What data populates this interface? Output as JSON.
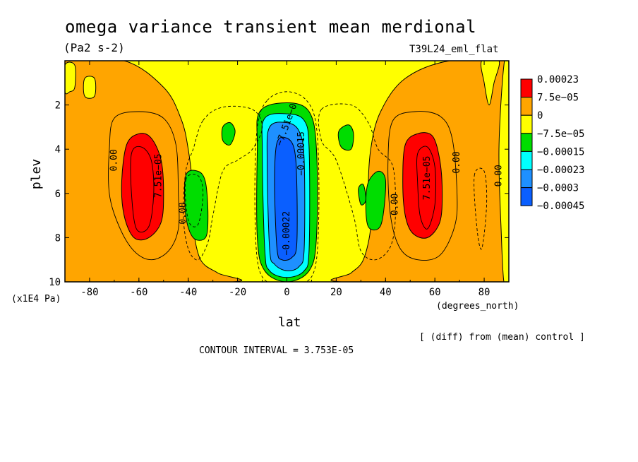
{
  "chart_data": {
    "type": "contour",
    "title": "omega variance transient mean merdional",
    "units": "(Pa2 s-2)",
    "run_label": "T39L24_eml_flat",
    "xlabel": "lat",
    "x_units": "(degrees_north)",
    "ylabel": "plev",
    "y_units": "(x1E4 Pa)",
    "xlim": [
      -90,
      90
    ],
    "ylim": [
      10,
      0
    ],
    "x_ticks": [
      {
        "v": -80,
        "label": "-80"
      },
      {
        "v": -60,
        "label": "-60"
      },
      {
        "v": -40,
        "label": "-40"
      },
      {
        "v": -20,
        "label": "-20"
      },
      {
        "v": 0,
        "label": "0"
      },
      {
        "v": 20,
        "label": "20"
      },
      {
        "v": 40,
        "label": "40"
      },
      {
        "v": 60,
        "label": "60"
      },
      {
        "v": 80,
        "label": "80"
      }
    ],
    "y_ticks": [
      {
        "v": 2,
        "label": "2"
      },
      {
        "v": 4,
        "label": "4"
      },
      {
        "v": 6,
        "label": "6"
      },
      {
        "v": 8,
        "label": "8"
      },
      {
        "v": 10,
        "label": "10"
      }
    ],
    "legend": {
      "placement": "right",
      "levels": [
        "0.00023",
        "7.5e−05",
        "0",
        "−7.5e−05",
        "−0.00015",
        "−0.00023",
        "−0.0003",
        "−0.00045"
      ],
      "colors": [
        "#ff0000",
        "#ffa500",
        "#ffff00",
        "#00dd00",
        "#00ffff",
        "#1e90ff",
        "#0a5fff"
      ]
    },
    "contour_labels": [
      {
        "text": "7.51e−05",
        "lat": -52,
        "plev": 5.2,
        "rot": -90
      },
      {
        "text": "0.00",
        "lat": -70,
        "plev": 4.5,
        "rot": -90
      },
      {
        "text": "0.00",
        "lat": -42,
        "plev": 6.9,
        "rot": -90
      },
      {
        "text": "7.51e−05",
        "lat": 57,
        "plev": 5.3,
        "rot": -90
      },
      {
        "text": "0.00",
        "lat": 69,
        "plev": 4.6,
        "rot": -90
      },
      {
        "text": "0.00",
        "lat": 44,
        "plev": 6.5,
        "rot": -90
      },
      {
        "text": "0.00",
        "lat": 86,
        "plev": 5.2,
        "rot": -90
      },
      {
        "text": "−0.00015",
        "lat": 6,
        "plev": 4.2,
        "rot": -90
      },
      {
        "text": "−7.51e−0",
        "lat": 0,
        "plev": 2.9,
        "rot": -70
      },
      {
        "text": "−0.00022",
        "lat": 0,
        "plev": 7.8,
        "rot": -90
      }
    ],
    "regions": [
      {
        "name": "polar-band-south",
        "fill": "#ffa500",
        "pts": [
          [
            -90,
            0
          ],
          [
            -66,
            0
          ],
          [
            -50,
            1.2
          ],
          [
            -43,
            2.6
          ],
          [
            -40,
            4
          ],
          [
            -38,
            6
          ],
          [
            -38,
            7.5
          ],
          [
            -35,
            9
          ],
          [
            -28,
            9.6
          ],
          [
            -22,
            10
          ],
          [
            -90,
            10
          ]
        ]
      },
      {
        "name": "polar-band-north",
        "fill": "#ffa500",
        "pts": [
          [
            90,
            0
          ],
          [
            66,
            0
          ],
          [
            48,
            0.8
          ],
          [
            38,
            2.3
          ],
          [
            34,
            4
          ],
          [
            33,
            6
          ],
          [
            34,
            7.5
          ],
          [
            31,
            9
          ],
          [
            26,
            9.6
          ],
          [
            22,
            10
          ],
          [
            90,
            10
          ]
        ]
      },
      {
        "name": "yellow-island-s1",
        "fill": "#ffff00",
        "pts": [
          [
            -90,
            0.2
          ],
          [
            -86,
            0.2
          ],
          [
            -86,
            1.2
          ],
          [
            -88,
            1.4
          ],
          [
            -90,
            1.4
          ]
        ]
      },
      {
        "name": "yellow-island-s2",
        "fill": "#ffff00",
        "pts": [
          [
            -82,
            0.8
          ],
          [
            -78,
            0.8
          ],
          [
            -78,
            1.6
          ],
          [
            -82,
            1.6
          ]
        ]
      },
      {
        "name": "yellow-band-north",
        "fill": "#ffff00",
        "pts": [
          [
            88,
            0.2
          ],
          [
            90,
            0.2
          ],
          [
            90,
            10
          ],
          [
            88,
            10
          ],
          [
            87,
            8
          ],
          [
            86,
            4
          ]
        ]
      },
      {
        "name": "yellow-island-n2",
        "fill": "#ffff00",
        "pts": [
          [
            79,
            0
          ],
          [
            86,
            0
          ],
          [
            84,
            1
          ],
          [
            82,
            2
          ],
          [
            80,
            1
          ]
        ]
      },
      {
        "name": "red-core-south",
        "fill": "#ff0000",
        "pts": [
          [
            -65,
            3.8
          ],
          [
            -60,
            3.3
          ],
          [
            -55,
            3.5
          ],
          [
            -51,
            4.5
          ],
          [
            -50,
            6
          ],
          [
            -51,
            7.3
          ],
          [
            -56,
            8
          ],
          [
            -62,
            8
          ],
          [
            -66,
            7
          ],
          [
            -67,
            5.5
          ]
        ]
      },
      {
        "name": "red-core-north",
        "fill": "#ff0000",
        "pts": [
          [
            48,
            3.8
          ],
          [
            53,
            3.3
          ],
          [
            59,
            3.4
          ],
          [
            62,
            4.5
          ],
          [
            63,
            6
          ],
          [
            62,
            7.3
          ],
          [
            57,
            8
          ],
          [
            51,
            7.8
          ],
          [
            48,
            7
          ],
          [
            47,
            5.5
          ]
        ]
      },
      {
        "name": "green-blob-s",
        "fill": "#00dd00",
        "pts": [
          [
            -41,
            5.2
          ],
          [
            -36,
            5
          ],
          [
            -33,
            5.5
          ],
          [
            -32,
            7
          ],
          [
            -33,
            8
          ],
          [
            -38,
            8
          ],
          [
            -41,
            7
          ]
        ]
      },
      {
        "name": "green-blob-n",
        "fill": "#00dd00",
        "pts": [
          [
            33,
            5.5
          ],
          [
            37,
            5
          ],
          [
            40,
            5.4
          ],
          [
            39,
            7
          ],
          [
            37,
            7.6
          ],
          [
            33,
            7.5
          ],
          [
            32,
            6.5
          ]
        ]
      },
      {
        "name": "green-spot-s",
        "fill": "#00dd00",
        "pts": [
          [
            -26,
            3
          ],
          [
            -23,
            2.8
          ],
          [
            -21,
            3.2
          ],
          [
            -23,
            3.8
          ],
          [
            -26,
            3.6
          ]
        ]
      },
      {
        "name": "green-spot-n",
        "fill": "#00dd00",
        "pts": [
          [
            21,
            3.2
          ],
          [
            25,
            2.9
          ],
          [
            27,
            3.3
          ],
          [
            26,
            4
          ],
          [
            22,
            3.9
          ]
        ]
      },
      {
        "name": "green-spot-n2",
        "fill": "#00dd00",
        "pts": [
          [
            29,
            5.8
          ],
          [
            31,
            5.6
          ],
          [
            32,
            6.3
          ],
          [
            30,
            6.5
          ]
        ]
      },
      {
        "name": "equatorial-green",
        "fill": "#00dd00",
        "pts": [
          [
            -11,
            2.3
          ],
          [
            0,
            1.9
          ],
          [
            9,
            2.3
          ],
          [
            12,
            4
          ],
          [
            12,
            8
          ],
          [
            9,
            9.5
          ],
          [
            0,
            10
          ],
          [
            -9,
            9.5
          ],
          [
            -12,
            8
          ],
          [
            -12,
            4
          ]
        ]
      },
      {
        "name": "equatorial-cyan",
        "fill": "#00ffff",
        "pts": [
          [
            -9,
            2.6
          ],
          [
            0,
            2.4
          ],
          [
            7,
            2.7
          ],
          [
            9,
            4
          ],
          [
            9,
            8.5
          ],
          [
            7,
            9.5
          ],
          [
            0,
            9.8
          ],
          [
            -7,
            9.5
          ],
          [
            -9,
            8.5
          ],
          [
            -10,
            4
          ]
        ]
      },
      {
        "name": "equatorial-blue",
        "fill": "#1e90ff",
        "pts": [
          [
            -7,
            3
          ],
          [
            0,
            2.8
          ],
          [
            5,
            3.2
          ],
          [
            7,
            4.5
          ],
          [
            7,
            8.5
          ],
          [
            5,
            9.3
          ],
          [
            0,
            9.5
          ],
          [
            -5,
            9.2
          ],
          [
            -7,
            8.5
          ],
          [
            -8,
            4.5
          ]
        ]
      },
      {
        "name": "equatorial-core",
        "fill": "#0a5fff",
        "pts": [
          [
            -4,
            3.7
          ],
          [
            0,
            3.5
          ],
          [
            3,
            4
          ],
          [
            4,
            5.5
          ],
          [
            4,
            8.3
          ],
          [
            2,
            8.9
          ],
          [
            -2,
            9
          ],
          [
            -4,
            8.5
          ],
          [
            -5,
            5.5
          ]
        ]
      }
    ],
    "contours": [
      {
        "dash": false,
        "pts": [
          [
            -70,
            2.6
          ],
          [
            -60,
            2.3
          ],
          [
            -50,
            2.6
          ],
          [
            -45,
            3.8
          ],
          [
            -44,
            6
          ],
          [
            -44,
            7.6
          ],
          [
            -48,
            8.6
          ],
          [
            -55,
            9
          ],
          [
            -62,
            8.6
          ],
          [
            -68,
            7.5
          ],
          [
            -72,
            6
          ],
          [
            -72,
            4
          ]
        ]
      },
      {
        "dash": false,
        "pts": [
          [
            43,
            2.7
          ],
          [
            52,
            2.3
          ],
          [
            62,
            2.5
          ],
          [
            67,
            3.5
          ],
          [
            69,
            6
          ],
          [
            68,
            7.5
          ],
          [
            62,
            8.8
          ],
          [
            53,
            9
          ],
          [
            46,
            8.5
          ],
          [
            42,
            7
          ],
          [
            41,
            4.5
          ]
        ]
      },
      {
        "dash": false,
        "pts": [
          [
            -63,
            4.2
          ],
          [
            -59,
            3.9
          ],
          [
            -55,
            4.5
          ],
          [
            -54,
            6
          ],
          [
            -56,
            7.5
          ],
          [
            -61,
            7.6
          ],
          [
            -63,
            6
          ]
        ]
      },
      {
        "dash": false,
        "pts": [
          [
            53,
            4.2
          ],
          [
            57,
            3.9
          ],
          [
            60,
            4.8
          ],
          [
            60,
            6.5
          ],
          [
            57,
            7.6
          ],
          [
            54,
            7
          ],
          [
            53,
            5.5
          ]
        ]
      },
      {
        "dash": true,
        "pts": [
          [
            -34,
            2.7
          ],
          [
            -26,
            2.1
          ],
          [
            -14,
            2.2
          ],
          [
            -10,
            3
          ],
          [
            -14,
            4
          ],
          [
            -20,
            4.5
          ],
          [
            -26,
            5
          ],
          [
            -30,
            7
          ],
          [
            -32,
            8.2
          ],
          [
            -36,
            9
          ],
          [
            -40,
            8.5
          ],
          [
            -42,
            7
          ],
          [
            -41,
            5
          ],
          [
            -38,
            4
          ]
        ]
      },
      {
        "dash": true,
        "pts": [
          [
            14,
            2.2
          ],
          [
            26,
            2
          ],
          [
            33,
            2.8
          ],
          [
            37,
            4
          ],
          [
            43,
            4.8
          ],
          [
            44,
            7
          ],
          [
            42,
            8.4
          ],
          [
            36,
            9
          ],
          [
            30,
            8.6
          ],
          [
            27,
            7
          ],
          [
            20,
            4.5
          ],
          [
            14,
            3.6
          ]
        ]
      },
      {
        "dash": true,
        "pts": [
          [
            -8,
            1.8
          ],
          [
            0,
            1.4
          ],
          [
            8,
            1.8
          ],
          [
            12,
            3
          ],
          [
            13,
            6
          ],
          [
            12,
            9
          ],
          [
            8,
            10
          ],
          [
            0,
            10
          ],
          [
            -8,
            10
          ],
          [
            -12,
            9
          ],
          [
            -13,
            6
          ],
          [
            -12,
            3
          ]
        ]
      },
      {
        "dash": true,
        "pts": [
          [
            -41,
            5.4
          ],
          [
            -36,
            5.2
          ],
          [
            -34,
            6
          ],
          [
            -36,
            7.4
          ],
          [
            -40,
            7.2
          ]
        ]
      },
      {
        "dash": true,
        "pts": [
          [
            76,
            5.2
          ],
          [
            80,
            5
          ],
          [
            81,
            6.5
          ],
          [
            79,
            8.5
          ],
          [
            77,
            7.5
          ]
        ]
      }
    ]
  }
}
